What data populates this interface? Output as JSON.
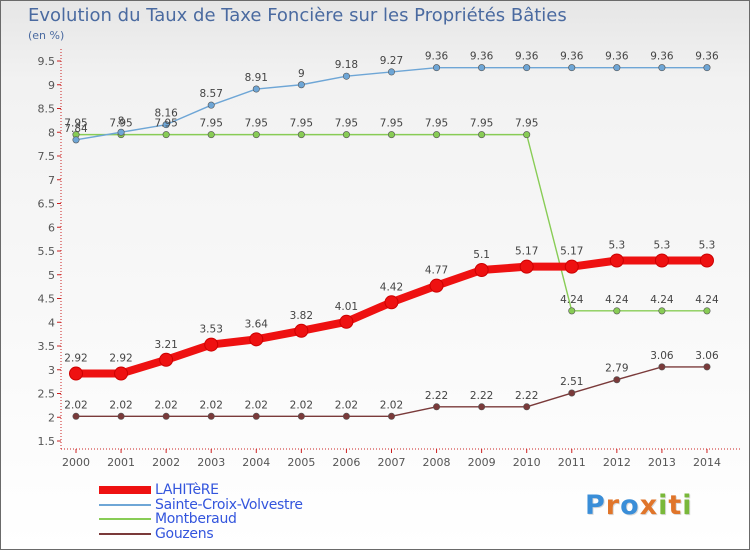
{
  "chart_data": {
    "type": "line",
    "title": "Evolution du Taux de Taxe Foncière sur les Propriétés Bâties",
    "ylabel": "(en %)",
    "xlabel": "",
    "categories": [
      "2000",
      "2001",
      "2002",
      "2003",
      "2004",
      "2005",
      "2006",
      "2007",
      "2008",
      "2009",
      "2010",
      "2011",
      "2012",
      "2013",
      "2014"
    ],
    "ylim": [
      1.5,
      9.5
    ],
    "yticks": [
      "1.5",
      "2",
      "2.5",
      "3",
      "3.5",
      "4",
      "4.5",
      "5",
      "5.5",
      "6",
      "6.5",
      "7",
      "7.5",
      "8",
      "8.5",
      "9",
      "9.5"
    ],
    "grid": false,
    "legend_position": "bottom-left",
    "series": [
      {
        "name": "LAHITèRE",
        "color": "#ee1111",
        "values": [
          2.92,
          2.92,
          3.21,
          3.53,
          3.64,
          3.82,
          4.01,
          4.42,
          4.77,
          5.1,
          5.17,
          5.17,
          5.3,
          5.3,
          5.3
        ],
        "labels": [
          "2.92",
          "2.92",
          "3.21",
          "3.53",
          "3.64",
          "3.82",
          "4.01",
          "4.42",
          "4.77",
          "5.1",
          "5.17",
          "5.17",
          "5.3",
          "5.3",
          "5.3"
        ]
      },
      {
        "name": "Sainte-Croix-Volvestre",
        "color": "#6ea6d6",
        "values": [
          7.84,
          8,
          8.16,
          8.57,
          8.91,
          9,
          9.18,
          9.27,
          9.36,
          9.36,
          9.36,
          9.36,
          9.36,
          9.36,
          9.36
        ],
        "labels": [
          "7.84",
          "8",
          "8.16",
          "8.57",
          "8.91",
          "9",
          "9.18",
          "9.27",
          "9.36",
          "9.36",
          "9.36",
          "9.36",
          "9.36",
          "9.36",
          "9.36"
        ]
      },
      {
        "name": "Montberaud",
        "color": "#88cc55",
        "values": [
          7.95,
          7.95,
          7.95,
          7.95,
          7.95,
          7.95,
          7.95,
          7.95,
          7.95,
          7.95,
          7.95,
          4.24,
          4.24,
          4.24,
          4.24
        ],
        "labels": [
          "7.95",
          "7.95",
          "7.95",
          "7.95",
          "7.95",
          "7.95",
          "7.95",
          "7.95",
          "7.95",
          "7.95",
          "7.95",
          "4.24",
          "4.24",
          "4.24",
          "4.24"
        ]
      },
      {
        "name": "Gouzens",
        "color": "#7a3a3a",
        "values": [
          2.02,
          2.02,
          2.02,
          2.02,
          2.02,
          2.02,
          2.02,
          2.02,
          2.22,
          2.22,
          2.22,
          2.51,
          2.79,
          3.06,
          3.06
        ],
        "labels": [
          "2.02",
          "2.02",
          "2.02",
          "2.02",
          "2.02",
          "2.02",
          "2.02",
          "2.02",
          "2.22",
          "2.22",
          "2.22",
          "2.51",
          "2.79",
          "3.06",
          "3.06"
        ]
      }
    ]
  },
  "brand": {
    "letters": [
      "P",
      "r",
      "o",
      "x",
      "i",
      "t",
      "i"
    ],
    "colors": [
      "#3a8ed8",
      "#e0752a",
      "#3a8ed8",
      "#e0752a",
      "#79b83a",
      "#e0752a",
      "#79b83a"
    ]
  }
}
